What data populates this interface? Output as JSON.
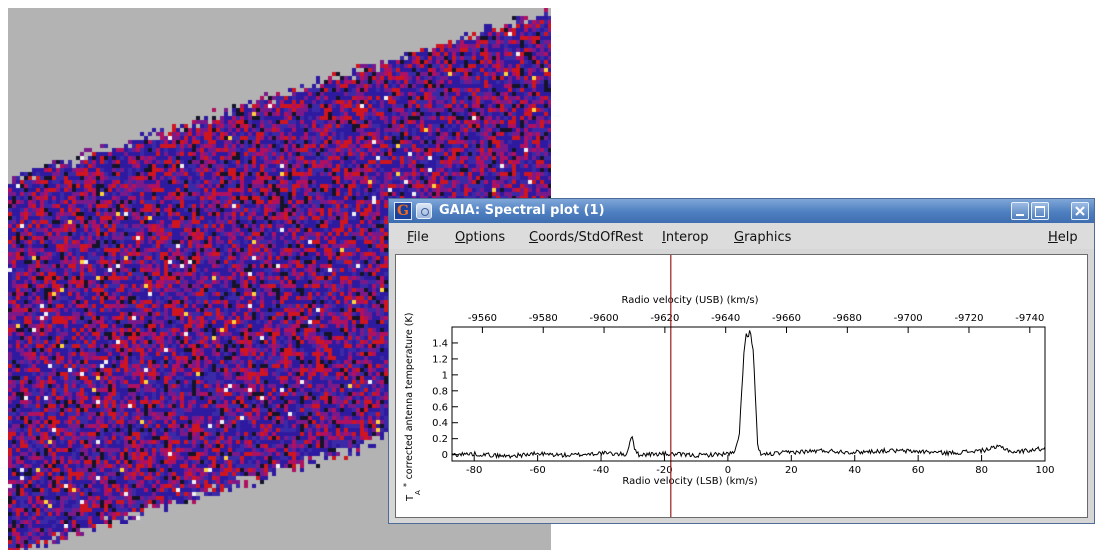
{
  "window": {
    "title": "GAIA: Spectral plot (1)",
    "app_icon_letter": "G"
  },
  "menu": {
    "file": "File",
    "options": "Options",
    "coords": "Coords/StdOfRest",
    "interop": "Interop",
    "graphics": "Graphics",
    "help": "Help"
  },
  "colors": {
    "image_palette": [
      "#2e1aa0",
      "#3b2aa8",
      "#7a1a8a",
      "#b01060",
      "#d0151f",
      "#141428",
      "#f0f0f0",
      "#ffd23c"
    ],
    "image_background": "#b3b3b3",
    "window_titlebar": "#4e7fc0",
    "cursor_line": "#9a1c1c"
  },
  "chart_data": {
    "type": "line",
    "ylabel": "corrected antenna temperature (K)",
    "ylabel_prefix": "T",
    "ylabel_sup": "*",
    "ylabel_sub": "A",
    "top_axis": {
      "label": "Radio velocity (USB) (km/s)",
      "ticks": [
        "-9560",
        "-9580",
        "-9600",
        "-9620",
        "-9640",
        "-9660",
        "-9680",
        "-9700",
        "-9720",
        "-9740"
      ],
      "range": [
        -9550,
        -9745
      ]
    },
    "bottom_axis": {
      "label": "Radio velocity (LSB) (km/s)",
      "ticks": [
        "-80",
        "-60",
        "-40",
        "-20",
        "0",
        "20",
        "40",
        "60",
        "80",
        "100"
      ],
      "range": [
        -87,
        100
      ]
    },
    "y_axis": {
      "ticks": [
        "0",
        "0.2",
        "0.4",
        "0.6",
        "0.8",
        "1",
        "1.2",
        "1.4"
      ],
      "range": [
        -0.08,
        1.6
      ]
    },
    "cursor_x": -18,
    "series": [
      {
        "x": [
          -87,
          -80,
          -70,
          -60,
          -50,
          -40,
          -32,
          -31,
          -30,
          -29.5,
          -28,
          -20,
          -10,
          0,
          2,
          3.5,
          4.5,
          5.2,
          5.8,
          6.5,
          7,
          7.5,
          8,
          8.8,
          9.5,
          11,
          20,
          30,
          40,
          50,
          60,
          70,
          80,
          86,
          90,
          100
        ],
        "y": [
          0.0,
          0.01,
          -0.02,
          0.01,
          -0.01,
          0.02,
          0.0,
          0.15,
          0.26,
          0.05,
          0.0,
          0.01,
          -0.01,
          0.01,
          0.02,
          0.2,
          0.9,
          1.35,
          1.5,
          1.46,
          1.58,
          1.42,
          1.3,
          0.6,
          0.05,
          0.0,
          0.03,
          0.05,
          0.03,
          0.05,
          0.04,
          0.02,
          0.05,
          0.1,
          0.03,
          0.08
        ]
      }
    ]
  }
}
